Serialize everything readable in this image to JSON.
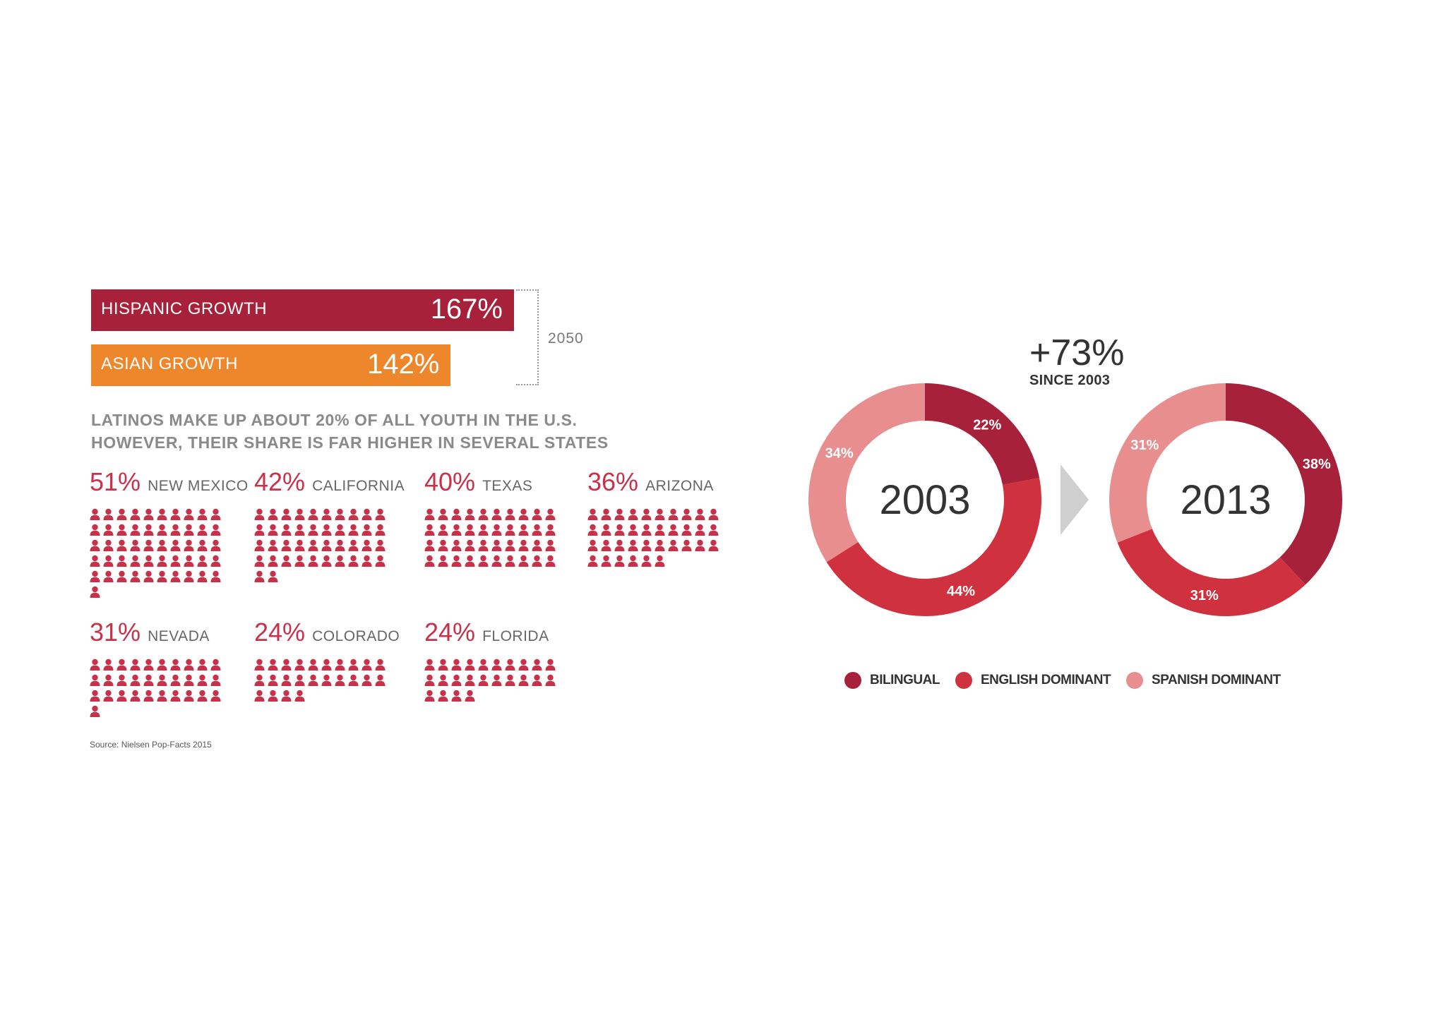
{
  "growth": {
    "hispanic": {
      "label": "HISPANIC GROWTH",
      "value_text": "167%",
      "value": 167,
      "color": "#a8213a"
    },
    "asian": {
      "label": "ASIAN GROWTH",
      "value_text": "142%",
      "value": 142,
      "color": "#ee862c"
    },
    "year": "2050"
  },
  "headline": {
    "line1": "LATINOS MAKE UP ABOUT 20% OF ALL YOUTH IN THE U.S.",
    "line2": "HOWEVER, THEIR SHARE IS FAR HIGHER IN SEVERAL STATES"
  },
  "states": [
    {
      "pct": "51%",
      "name": "NEW MEXICO",
      "value": 51
    },
    {
      "pct": "42%",
      "name": "CALIFORNIA",
      "value": 42
    },
    {
      "pct": "40%",
      "name": "TEXAS",
      "value": 40
    },
    {
      "pct": "36%",
      "name": "ARIZONA",
      "value": 36
    },
    {
      "pct": "31%",
      "name": "NEVADA",
      "value": 31
    },
    {
      "pct": "24%",
      "name": "COLORADO",
      "value": 24
    },
    {
      "pct": "24%",
      "name": "FLORIDA",
      "value": 24
    }
  ],
  "source": "Source: Nielsen Pop-Facts 2015",
  "since": {
    "big": "+73%",
    "small": "SINCE 2003"
  },
  "legend": [
    {
      "label": "BILINGUAL",
      "color": "#a8213a"
    },
    {
      "label": "ENGLISH DOMINANT",
      "color": "#d0313f"
    },
    {
      "label": "SPANISH DOMINANT",
      "color": "#e88e8e"
    }
  ],
  "chart_data": [
    {
      "type": "bar",
      "categories": [
        "HISPANIC GROWTH",
        "ASIAN GROWTH"
      ],
      "values": [
        167,
        142
      ],
      "title": "2050"
    },
    {
      "type": "pie",
      "title": "2003",
      "slices": [
        {
          "label": "BILINGUAL",
          "value": 22,
          "value_text": "22%"
        },
        {
          "label": "ENGLISH DOMINANT",
          "value": 44,
          "value_text": "44%"
        },
        {
          "label": "SPANISH DOMINANT",
          "value": 34,
          "value_text": "34%"
        }
      ]
    },
    {
      "type": "pie",
      "title": "2013",
      "slices": [
        {
          "label": "BILINGUAL",
          "value": 38,
          "value_text": "38%"
        },
        {
          "label": "ENGLISH DOMINANT",
          "value": 31,
          "value_text": "31%"
        },
        {
          "label": "SPANISH DOMINANT",
          "value": 31,
          "value_text": "31%"
        }
      ]
    }
  ],
  "colors": {
    "person": "#c8314a",
    "arrow": "#cfcfcf",
    "hole_text": "#333333"
  }
}
